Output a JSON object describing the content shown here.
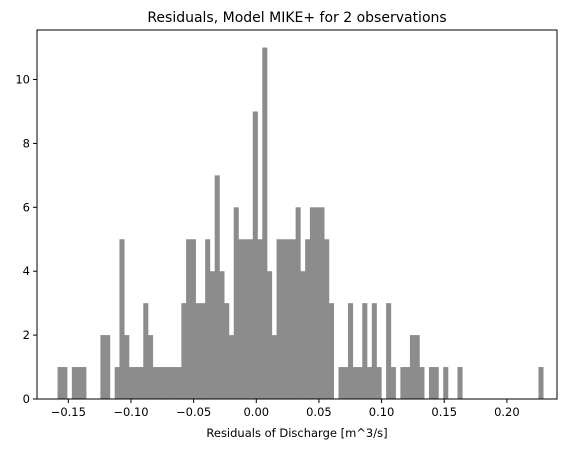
{
  "chart_data": {
    "type": "bar",
    "title": "Residuals, Model MIKE+ for 2 observations",
    "xlabel": "Residuals of Discharge [m^3/s]",
    "ylabel": "",
    "xlim": [
      -0.175,
      0.24
    ],
    "ylim": [
      0,
      11.55
    ],
    "grid": false,
    "legend": "none",
    "bar_color": "#8c8c8c",
    "x_ticks": [
      -0.15,
      -0.1,
      -0.05,
      0.0,
      0.05,
      0.1,
      0.15,
      0.2
    ],
    "x_tick_labels": [
      "−0.15",
      "−0.10",
      "−0.05",
      "0.00",
      "0.05",
      "0.10",
      "0.15",
      "0.20"
    ],
    "y_ticks": [
      0,
      2,
      4,
      6,
      8,
      10
    ],
    "y_tick_labels": [
      "0",
      "2",
      "4",
      "6",
      "8",
      "10"
    ],
    "bin_width": 0.0038,
    "bins": [
      {
        "x": -0.1567,
        "count": 1
      },
      {
        "x": -0.1529,
        "count": 1
      },
      {
        "x": -0.1453,
        "count": 1
      },
      {
        "x": -0.1415,
        "count": 1
      },
      {
        "x": -0.1377,
        "count": 1
      },
      {
        "x": -0.1225,
        "count": 2
      },
      {
        "x": -0.1187,
        "count": 2
      },
      {
        "x": -0.1111,
        "count": 1
      },
      {
        "x": -0.1073,
        "count": 5
      },
      {
        "x": -0.1035,
        "count": 2
      },
      {
        "x": -0.0997,
        "count": 1
      },
      {
        "x": -0.0959,
        "count": 1
      },
      {
        "x": -0.0921,
        "count": 1
      },
      {
        "x": -0.0883,
        "count": 3
      },
      {
        "x": -0.0845,
        "count": 2
      },
      {
        "x": -0.0807,
        "count": 1
      },
      {
        "x": -0.0769,
        "count": 1
      },
      {
        "x": -0.0731,
        "count": 1
      },
      {
        "x": -0.0693,
        "count": 1
      },
      {
        "x": -0.0655,
        "count": 1
      },
      {
        "x": -0.0617,
        "count": 1
      },
      {
        "x": -0.0579,
        "count": 3
      },
      {
        "x": -0.0541,
        "count": 5
      },
      {
        "x": -0.0503,
        "count": 5
      },
      {
        "x": -0.0465,
        "count": 3
      },
      {
        "x": -0.0427,
        "count": 3
      },
      {
        "x": -0.0389,
        "count": 5
      },
      {
        "x": -0.0351,
        "count": 4
      },
      {
        "x": -0.0313,
        "count": 7
      },
      {
        "x": -0.0275,
        "count": 4
      },
      {
        "x": -0.0237,
        "count": 3
      },
      {
        "x": -0.0199,
        "count": 2
      },
      {
        "x": -0.0161,
        "count": 6
      },
      {
        "x": -0.0123,
        "count": 5
      },
      {
        "x": -0.0085,
        "count": 5
      },
      {
        "x": -0.0047,
        "count": 5
      },
      {
        "x": -0.0009,
        "count": 9
      },
      {
        "x": 0.0029,
        "count": 5
      },
      {
        "x": 0.0067,
        "count": 11
      },
      {
        "x": 0.0105,
        "count": 4
      },
      {
        "x": 0.0143,
        "count": 2
      },
      {
        "x": 0.0181,
        "count": 5
      },
      {
        "x": 0.0219,
        "count": 5
      },
      {
        "x": 0.0257,
        "count": 5
      },
      {
        "x": 0.0295,
        "count": 5
      },
      {
        "x": 0.0333,
        "count": 6
      },
      {
        "x": 0.0371,
        "count": 4
      },
      {
        "x": 0.0409,
        "count": 5
      },
      {
        "x": 0.0447,
        "count": 6
      },
      {
        "x": 0.0485,
        "count": 6
      },
      {
        "x": 0.0523,
        "count": 6
      },
      {
        "x": 0.0561,
        "count": 5
      },
      {
        "x": 0.0599,
        "count": 3
      },
      {
        "x": 0.0675,
        "count": 1
      },
      {
        "x": 0.0713,
        "count": 1
      },
      {
        "x": 0.0751,
        "count": 3
      },
      {
        "x": 0.0789,
        "count": 1
      },
      {
        "x": 0.0827,
        "count": 1
      },
      {
        "x": 0.0865,
        "count": 3
      },
      {
        "x": 0.0903,
        "count": 1
      },
      {
        "x": 0.0941,
        "count": 3
      },
      {
        "x": 0.0979,
        "count": 1
      },
      {
        "x": 0.1055,
        "count": 3
      },
      {
        "x": 0.1093,
        "count": 1
      },
      {
        "x": 0.1169,
        "count": 1
      },
      {
        "x": 0.1207,
        "count": 1
      },
      {
        "x": 0.1245,
        "count": 2
      },
      {
        "x": 0.1283,
        "count": 2
      },
      {
        "x": 0.1321,
        "count": 1
      },
      {
        "x": 0.1397,
        "count": 1
      },
      {
        "x": 0.1435,
        "count": 1
      },
      {
        "x": 0.1511,
        "count": 1
      },
      {
        "x": 0.1625,
        "count": 1
      },
      {
        "x": 0.2271,
        "count": 1
      }
    ]
  }
}
